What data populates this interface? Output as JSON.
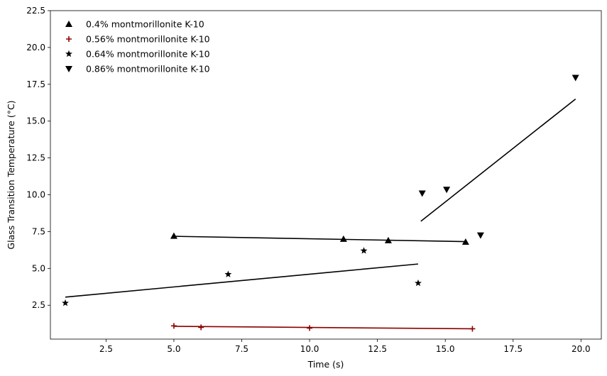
{
  "chart_data": {
    "type": "scatter",
    "title": "",
    "xlabel": "Time (s)",
    "ylabel": "Glass Transition Temperature (°C)",
    "xlim": [
      0.45,
      20.75
    ],
    "ylim": [
      0.2,
      22.5
    ],
    "xticks": [
      2.5,
      5.0,
      7.5,
      10.0,
      12.5,
      15.0,
      17.5,
      20.0
    ],
    "xtick_labels": [
      "2.5",
      "5.0",
      "7.5",
      "10.0",
      "12.5",
      "15.0",
      "17.5",
      "20.0"
    ],
    "yticks": [
      2.5,
      5.0,
      7.5,
      10.0,
      12.5,
      15.0,
      17.5,
      20.0,
      22.5
    ],
    "ytick_labels": [
      "2.5",
      "5.0",
      "7.5",
      "10.0",
      "12.5",
      "15.0",
      "17.5",
      "20.0",
      "22.5"
    ],
    "grid": false,
    "legend_position": "top-left",
    "series": [
      {
        "name": "0.4% montmorillonite K-10",
        "marker": "triangle-up",
        "color": "#000000",
        "x": [
          5.0,
          11.25,
          12.9,
          15.75
        ],
        "y": [
          7.2,
          7.0,
          6.9,
          6.8
        ],
        "fit_line": {
          "x": [
            5.0,
            15.75
          ],
          "y": [
            7.18,
            6.82
          ],
          "color": "#000000"
        }
      },
      {
        "name": "0.56% montmorillonite K-10",
        "marker": "plus",
        "color": "#8b0000",
        "x": [
          5.0,
          6.0,
          10.0,
          16.0
        ],
        "y": [
          1.1,
          1.0,
          0.95,
          0.9
        ],
        "fit_line": {
          "x": [
            5.0,
            16.0
          ],
          "y": [
            1.07,
            0.9
          ],
          "color": "#8b0000"
        }
      },
      {
        "name": "0.64% montmorillonite K-10",
        "marker": "star",
        "color": "#000000",
        "x": [
          1.0,
          7.0,
          12.0,
          14.0
        ],
        "y": [
          2.65,
          4.6,
          6.2,
          4.0
        ],
        "fit_line": {
          "x": [
            1.0,
            14.0
          ],
          "y": [
            3.05,
            5.3
          ],
          "color": "#000000"
        }
      },
      {
        "name": "0.86% montmorillonite K-10",
        "marker": "triangle-down",
        "color": "#000000",
        "x": [
          14.15,
          15.05,
          16.3,
          19.8
        ],
        "y": [
          10.1,
          10.35,
          7.25,
          17.95
        ],
        "fit_line": {
          "x": [
            14.1,
            19.8
          ],
          "y": [
            8.2,
            16.5
          ],
          "color": "#000000"
        }
      }
    ]
  }
}
